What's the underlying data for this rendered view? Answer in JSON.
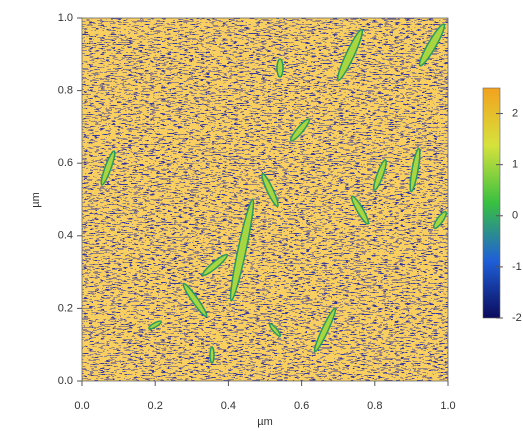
{
  "chart_data": {
    "type": "image",
    "xlabel": "µm",
    "ylabel": "µm",
    "xlim": [
      0,
      1
    ],
    "ylim": [
      0,
      1
    ],
    "xticks": [
      {
        "value": 0,
        "label": "0.0"
      },
      0.2,
      0.4,
      0.6,
      0.8,
      {
        "value": 1,
        "label": "1.0"
      }
    ],
    "yticks": [
      {
        "value": 0,
        "label": "0.0"
      },
      0.2,
      0.4,
      0.6,
      0.8,
      {
        "value": 1,
        "label": "1.0"
      }
    ],
    "clim": [
      -2,
      2.5
    ],
    "cticks": [
      -2,
      -1,
      0,
      1,
      2
    ],
    "colormap": [
      "#0b0b5c",
      "#1f5fd8",
      "#38c040",
      "#d6e23c",
      "#f3a21e"
    ]
  }
}
